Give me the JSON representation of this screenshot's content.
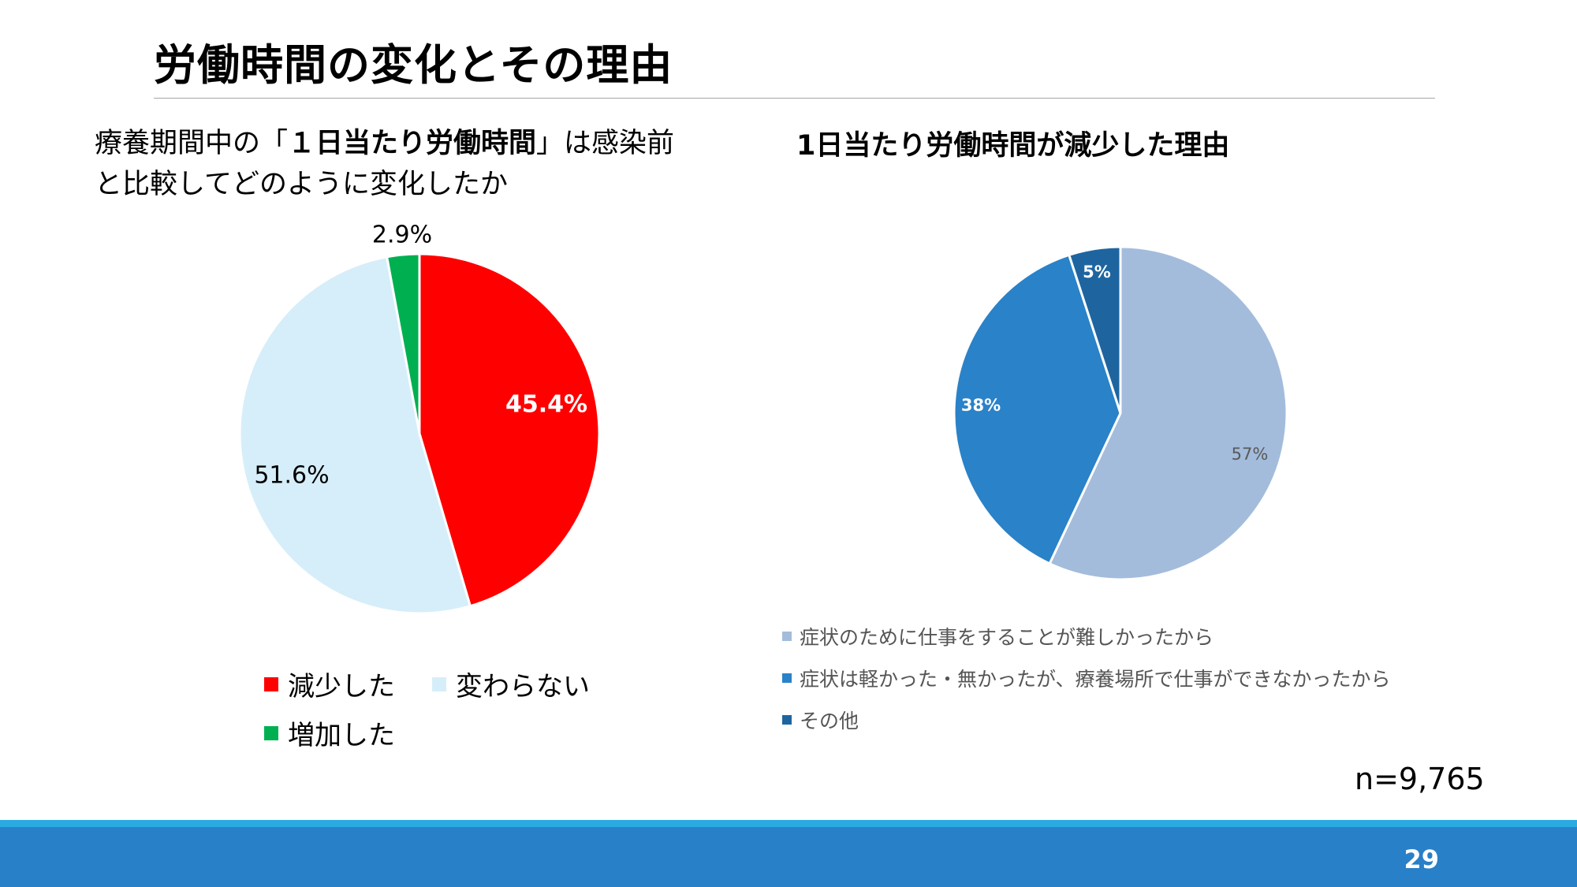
{
  "slide": {
    "title": "労働時間の変化とその理由",
    "page_number": "29",
    "sample_size": "n=9,765"
  },
  "left": {
    "question_line1_pre": "療養期間中の「",
    "question_line1_bold": "１日当たり労働時間",
    "question_line1_post": "」は感染前",
    "question_line2": "と比較してどのように変化したか"
  },
  "right": {
    "title": "1日当たり労働時間が減少した理由"
  },
  "colors": {
    "decrease": "#ff0000",
    "unchanged": "#d6eef9",
    "increase": "#00b050",
    "reason1": "#a3bcdc",
    "reason2": "#2a82c8",
    "reason3": "#1e65a0",
    "footer": "#2880c8"
  },
  "chart_data": [
    {
      "type": "pie",
      "title": "",
      "start_angle_deg": 0,
      "direction": "clockwise",
      "slices": [
        {
          "label": "減少した",
          "value": 45.4,
          "data_label": "45.4%",
          "color": "#ff0000"
        },
        {
          "label": "変わらない",
          "value": 51.6,
          "data_label": "51.6%",
          "color": "#d6eef9"
        },
        {
          "label": "増加した",
          "value": 2.9,
          "data_label": "2.9%",
          "color": "#00b050"
        }
      ],
      "legend_position": "bottom"
    },
    {
      "type": "pie",
      "title": "1日当たり労働時間が減少した理由",
      "start_angle_deg": 0,
      "direction": "clockwise",
      "slices": [
        {
          "label": "症状のために仕事をすることが難しかったから",
          "value": 57,
          "data_label": "57%",
          "color": "#a3bcdc"
        },
        {
          "label": "症状は軽かった・無かったが、療養場所で仕事ができなかったから",
          "value": 38,
          "data_label": "38%",
          "color": "#2a82c8"
        },
        {
          "label": "その他",
          "value": 5,
          "data_label": "5%",
          "color": "#1e65a0"
        }
      ],
      "legend_position": "bottom"
    }
  ]
}
